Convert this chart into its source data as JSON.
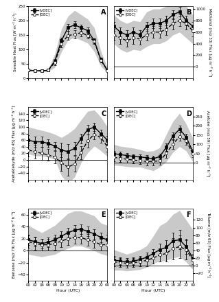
{
  "hour_ticks": [
    0,
    2,
    4,
    6,
    8,
    10,
    12,
    14,
    16,
    18,
    20,
    22,
    24
  ],
  "hour_labels": [
    "00",
    "02",
    "04",
    "06",
    "08",
    "10",
    "12",
    "14",
    "16",
    "18",
    "20",
    "22",
    "00"
  ],
  "panel_A": {
    "label": "A",
    "ylabel_left": "Sensible Heat Flux [W m⁻² h⁻¹]",
    "ylim": [
      0,
      250
    ],
    "yticks": [
      0,
      50,
      100,
      150,
      200,
      250
    ],
    "x": [
      0,
      2,
      4,
      6,
      8,
      10,
      12,
      14,
      16,
      18,
      20,
      22,
      24
    ],
    "vdec": [
      28,
      27,
      26,
      28,
      60,
      130,
      175,
      185,
      175,
      165,
      130,
      65,
      28
    ],
    "dec": [
      28,
      27,
      26,
      28,
      55,
      120,
      148,
      152,
      158,
      148,
      128,
      63,
      27
    ],
    "shade_upper": [
      30,
      29,
      28,
      32,
      85,
      170,
      215,
      235,
      220,
      205,
      175,
      95,
      35
    ],
    "shade_lower": [
      24,
      24,
      24,
      24,
      38,
      92,
      132,
      142,
      132,
      122,
      92,
      42,
      20
    ],
    "vdec_err": [
      2,
      2,
      2,
      2,
      8,
      10,
      12,
      12,
      10,
      10,
      8,
      6,
      3
    ],
    "dec_err": [
      3,
      3,
      3,
      3,
      10,
      12,
      15,
      15,
      12,
      10,
      10,
      8,
      4
    ],
    "hline": null
  },
  "panel_B": {
    "label": "B",
    "ylabel_right": "Methanol (m/z 33) Flux [μg m⁻² h⁻¹]",
    "ylim": [
      -200,
      1050
    ],
    "yticks": [
      0,
      200,
      400,
      600,
      800,
      1000
    ],
    "x": [
      0,
      2,
      4,
      6,
      8,
      10,
      12,
      14,
      16,
      18,
      20,
      22,
      24
    ],
    "vdec": [
      700,
      600,
      550,
      600,
      550,
      700,
      750,
      750,
      800,
      900,
      950,
      800,
      700
    ],
    "dec": [
      550,
      500,
      450,
      500,
      480,
      550,
      600,
      600,
      650,
      750,
      800,
      750,
      620
    ],
    "shade_upper": [
      900,
      800,
      750,
      800,
      780,
      950,
      1000,
      1000,
      1050,
      1150,
      1200,
      1050,
      900
    ],
    "shade_lower": [
      400,
      300,
      250,
      300,
      280,
      350,
      400,
      400,
      450,
      550,
      600,
      500,
      400
    ],
    "vdec_err": [
      80,
      80,
      80,
      80,
      80,
      80,
      80,
      80,
      80,
      80,
      80,
      80,
      80
    ],
    "dec_err": [
      100,
      100,
      100,
      100,
      100,
      100,
      100,
      100,
      100,
      100,
      100,
      100,
      100
    ],
    "hline": 0
  },
  "panel_C": {
    "label": "C",
    "ylabel_left": "Acetaldehyde (m/z 45) Flux [μg m⁻² h⁻¹]",
    "ylim": [
      -60,
      160
    ],
    "yticks": [
      -40,
      -20,
      0,
      20,
      40,
      60,
      80,
      100,
      120,
      140
    ],
    "x": [
      0,
      2,
      4,
      6,
      8,
      10,
      12,
      14,
      16,
      18,
      20,
      22,
      24
    ],
    "vdec": [
      60,
      55,
      55,
      50,
      42,
      30,
      25,
      35,
      65,
      92,
      100,
      80,
      60
    ],
    "dec": [
      30,
      25,
      20,
      15,
      8,
      -8,
      -22,
      -12,
      22,
      58,
      78,
      68,
      40
    ],
    "shade_upper": [
      100,
      95,
      90,
      85,
      78,
      68,
      80,
      95,
      122,
      148,
      152,
      130,
      100
    ],
    "shade_lower": [
      18,
      12,
      12,
      8,
      2,
      -48,
      -72,
      -52,
      -8,
      22,
      42,
      28,
      10
    ],
    "vdec_err": [
      15,
      15,
      15,
      12,
      12,
      22,
      22,
      20,
      15,
      15,
      12,
      12,
      12
    ],
    "dec_err": [
      20,
      20,
      20,
      18,
      18,
      26,
      26,
      24,
      20,
      20,
      15,
      15,
      15
    ],
    "hline": 0
  },
  "panel_D": {
    "label": "D",
    "ylabel_right": "Acetone (m/z 59) Flux [μg m⁻² h⁻¹]",
    "ylim": [
      -90,
      300
    ],
    "yticks": [
      0,
      50,
      100,
      150,
      200,
      250
    ],
    "x": [
      0,
      2,
      4,
      6,
      8,
      10,
      12,
      14,
      16,
      18,
      20,
      22,
      24
    ],
    "vdec": [
      50,
      45,
      40,
      35,
      32,
      28,
      22,
      35,
      85,
      145,
      182,
      140,
      62
    ],
    "dec": [
      30,
      25,
      20,
      15,
      12,
      8,
      8,
      12,
      52,
      102,
      142,
      120,
      50
    ],
    "shade_upper": [
      100,
      90,
      85,
      80,
      72,
      62,
      65,
      82,
      155,
      225,
      268,
      210,
      135
    ],
    "shade_lower": [
      -12,
      -15,
      -20,
      -22,
      -22,
      -32,
      -42,
      -22,
      8,
      58,
      88,
      65,
      8
    ],
    "vdec_err": [
      15,
      15,
      15,
      12,
      12,
      15,
      15,
      15,
      20,
      20,
      18,
      18,
      12
    ],
    "dec_err": [
      20,
      20,
      20,
      18,
      18,
      20,
      20,
      20,
      25,
      25,
      22,
      22,
      18
    ],
    "hline": 0
  },
  "panel_E": {
    "label": "E",
    "ylabel_left": "Benzene (m/z 79) Flux [μg m⁻² h⁻¹]",
    "ylim": [
      -50,
      70
    ],
    "yticks": [
      -40,
      -20,
      0,
      20,
      40,
      60
    ],
    "x": [
      0,
      2,
      4,
      6,
      8,
      10,
      12,
      14,
      16,
      18,
      20,
      22,
      24
    ],
    "vdec": [
      18,
      15,
      12,
      14,
      18,
      24,
      30,
      34,
      36,
      32,
      28,
      22,
      18
    ],
    "dec": [
      15,
      12,
      10,
      10,
      12,
      16,
      20,
      22,
      22,
      18,
      15,
      10,
      10
    ],
    "shade_upper": [
      42,
      36,
      30,
      36,
      42,
      52,
      62,
      66,
      66,
      62,
      58,
      46,
      42
    ],
    "shade_lower": [
      -6,
      -8,
      -10,
      -8,
      -6,
      0,
      4,
      8,
      8,
      4,
      0,
      -5,
      -8
    ],
    "vdec_err": [
      8,
      8,
      8,
      8,
      8,
      8,
      8,
      8,
      8,
      8,
      8,
      8,
      8
    ],
    "dec_err": [
      10,
      10,
      10,
      10,
      10,
      10,
      10,
      10,
      10,
      10,
      10,
      10,
      10
    ],
    "hline": 0
  },
  "panel_F": {
    "label": "F",
    "ylabel_right": "Toluene (m/z 93) Flux [μg m⁻² h⁻¹]",
    "ylim": [
      -40,
      150
    ],
    "yticks": [
      -20,
      0,
      20,
      40,
      60,
      80,
      100,
      120
    ],
    "x": [
      0,
      2,
      4,
      6,
      8,
      10,
      12,
      14,
      16,
      18,
      20,
      22,
      24
    ],
    "vdec": [
      15,
      12,
      10,
      12,
      16,
      22,
      32,
      42,
      48,
      65,
      68,
      50,
      20
    ],
    "dec": [
      10,
      8,
      6,
      8,
      10,
      14,
      20,
      28,
      32,
      45,
      50,
      42,
      15
    ],
    "shade_upper": [
      42,
      36,
      30,
      36,
      42,
      52,
      78,
      105,
      115,
      135,
      145,
      120,
      95
    ],
    "shade_lower": [
      -12,
      -12,
      -14,
      -12,
      -10,
      -4,
      6,
      12,
      14,
      20,
      24,
      10,
      -10
    ],
    "vdec_err": [
      10,
      10,
      10,
      10,
      10,
      12,
      12,
      15,
      18,
      22,
      25,
      20,
      10
    ],
    "dec_err": [
      12,
      12,
      12,
      12,
      12,
      15,
      15,
      18,
      22,
      28,
      30,
      25,
      12
    ],
    "hline": 0
  },
  "legend_vdec": "[vDEC]",
  "legend_dec": "[DEC]",
  "bg_color": "#ffffff",
  "line_color": "#000000",
  "shade_color": "#c0c0c0",
  "marker_vdec": "s",
  "marker_dec": "o",
  "markersize": 3,
  "linewidth": 1.0
}
